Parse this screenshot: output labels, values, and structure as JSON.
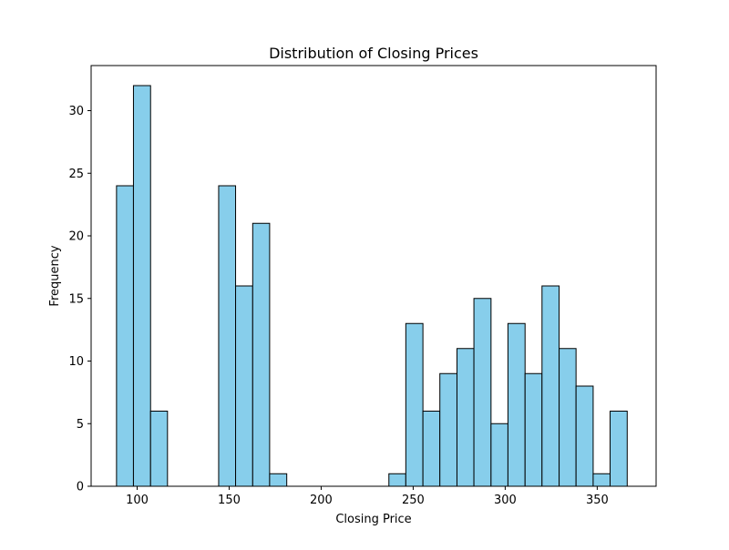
{
  "chart_data": {
    "type": "bar",
    "title": "Distribution of Closing Prices",
    "xlabel": "Closing Price",
    "ylabel": "Frequency",
    "xlim": [
      75,
      382
    ],
    "ylim": [
      0,
      33.6
    ],
    "x_ticks": [
      100,
      150,
      200,
      250,
      300,
      350
    ],
    "y_ticks": [
      0,
      5,
      10,
      15,
      20,
      25,
      30
    ],
    "grid": false,
    "bar_color": "#87ceeb",
    "edge_color": "#000000",
    "bins": [
      {
        "start": 88.8,
        "end": 98.0,
        "count": 24
      },
      {
        "start": 98.0,
        "end": 107.3,
        "count": 32
      },
      {
        "start": 107.3,
        "end": 116.5,
        "count": 6
      },
      {
        "start": 116.5,
        "end": 125.8,
        "count": 0
      },
      {
        "start": 125.8,
        "end": 135.0,
        "count": 0
      },
      {
        "start": 135.0,
        "end": 144.3,
        "count": 0
      },
      {
        "start": 144.3,
        "end": 153.5,
        "count": 24
      },
      {
        "start": 153.5,
        "end": 162.8,
        "count": 16
      },
      {
        "start": 162.8,
        "end": 172.0,
        "count": 21
      },
      {
        "start": 172.0,
        "end": 181.3,
        "count": 1
      },
      {
        "start": 181.3,
        "end": 190.5,
        "count": 0
      },
      {
        "start": 190.5,
        "end": 199.8,
        "count": 0
      },
      {
        "start": 199.8,
        "end": 209.0,
        "count": 0
      },
      {
        "start": 209.0,
        "end": 218.3,
        "count": 0
      },
      {
        "start": 218.3,
        "end": 227.5,
        "count": 0
      },
      {
        "start": 227.5,
        "end": 236.8,
        "count": 0
      },
      {
        "start": 236.8,
        "end": 246.0,
        "count": 1
      },
      {
        "start": 246.0,
        "end": 255.3,
        "count": 13
      },
      {
        "start": 255.3,
        "end": 264.5,
        "count": 6
      },
      {
        "start": 264.5,
        "end": 273.8,
        "count": 9
      },
      {
        "start": 273.8,
        "end": 283.0,
        "count": 11
      },
      {
        "start": 283.0,
        "end": 292.3,
        "count": 15
      },
      {
        "start": 292.3,
        "end": 301.5,
        "count": 5
      },
      {
        "start": 301.5,
        "end": 310.8,
        "count": 13
      },
      {
        "start": 310.8,
        "end": 320.0,
        "count": 9
      },
      {
        "start": 320.0,
        "end": 329.3,
        "count": 16
      },
      {
        "start": 329.3,
        "end": 338.5,
        "count": 11
      },
      {
        "start": 338.5,
        "end": 347.8,
        "count": 8
      },
      {
        "start": 347.8,
        "end": 357.0,
        "count": 1
      },
      {
        "start": 357.0,
        "end": 366.3,
        "count": 6
      }
    ]
  }
}
